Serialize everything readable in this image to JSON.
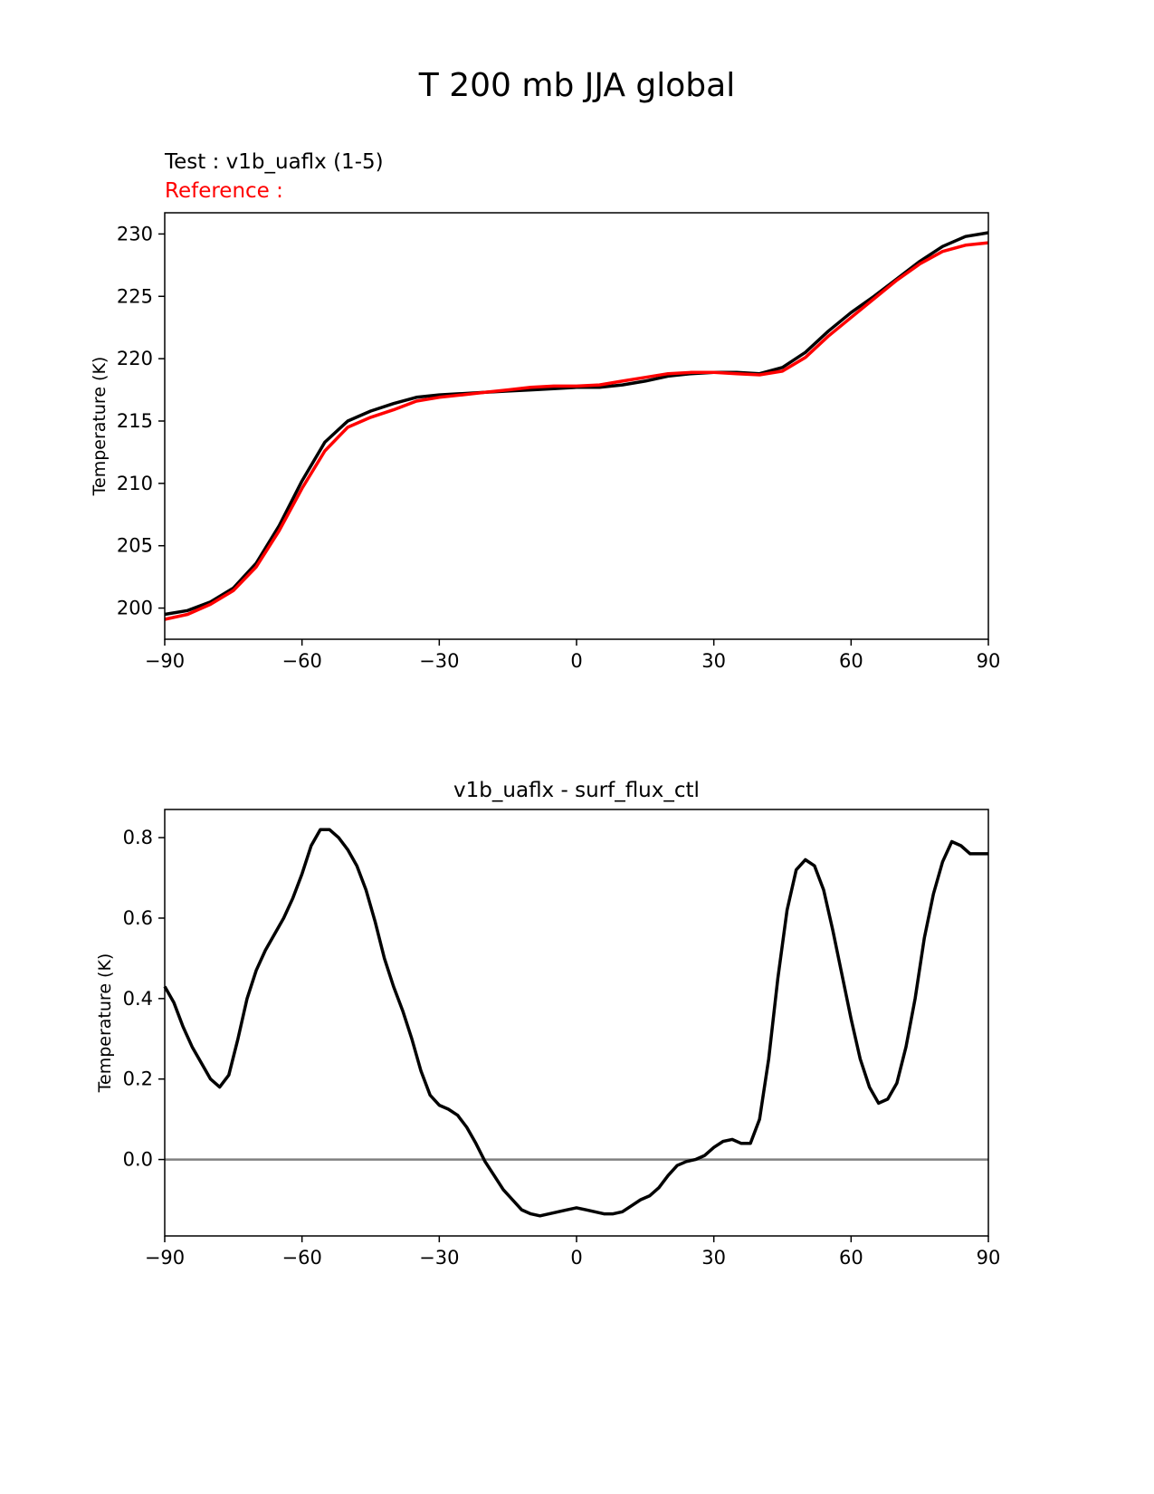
{
  "figure": {
    "title": "T 200 mb JJA global"
  },
  "chart_data": [
    {
      "type": "line",
      "test_label": "Test : v1b_uaflx (1-5)",
      "reference_label": "Reference :",
      "xlabel": "",
      "ylabel": "Temperature (K)",
      "xlim": [
        -90,
        90
      ],
      "ylim": [
        197.5,
        231.7
      ],
      "xticks": [
        -90,
        -60,
        -30,
        0,
        30,
        60,
        90
      ],
      "xtick_labels": [
        "−90",
        "−60",
        "−30",
        "0",
        "30",
        "60",
        "90"
      ],
      "yticks": [
        200,
        205,
        210,
        215,
        220,
        225,
        230
      ],
      "yticks_labels": [
        "200",
        "205",
        "210",
        "215",
        "220",
        "225",
        "230"
      ],
      "colors": {
        "test": "#000000",
        "reference": "#ff0000"
      },
      "series": [
        {
          "color": "#000000",
          "x": [
            -90,
            -85,
            -80,
            -75,
            -70,
            -65,
            -60,
            -55,
            -50,
            -45,
            -40,
            -35,
            -30,
            -25,
            -20,
            -15,
            -10,
            -5,
            0,
            5,
            10,
            15,
            20,
            25,
            30,
            35,
            40,
            45,
            50,
            55,
            60,
            65,
            70,
            75,
            80,
            85,
            90
          ],
          "y": [
            199.5,
            199.8,
            200.5,
            201.6,
            203.6,
            206.6,
            210.2,
            213.3,
            215.0,
            215.8,
            216.4,
            216.9,
            217.1,
            217.2,
            217.3,
            217.4,
            217.5,
            217.6,
            217.7,
            217.7,
            217.9,
            218.2,
            218.6,
            218.8,
            218.9,
            218.9,
            218.8,
            219.3,
            220.5,
            222.2,
            223.7,
            225.0,
            226.4,
            227.8,
            229.0,
            229.8,
            230.1
          ]
        },
        {
          "color": "#ff0000",
          "x": [
            -90,
            -85,
            -80,
            -75,
            -70,
            -65,
            -60,
            -55,
            -50,
            -45,
            -40,
            -35,
            -30,
            -25,
            -20,
            -15,
            -10,
            -5,
            0,
            5,
            10,
            15,
            20,
            25,
            30,
            35,
            40,
            45,
            50,
            55,
            60,
            65,
            70,
            75,
            80,
            85,
            90
          ],
          "y": [
            199.1,
            199.5,
            200.3,
            201.4,
            203.3,
            206.2,
            209.6,
            212.6,
            214.5,
            215.3,
            215.9,
            216.6,
            216.9,
            217.1,
            217.3,
            217.5,
            217.7,
            217.8,
            217.8,
            217.9,
            218.2,
            218.5,
            218.8,
            218.9,
            218.9,
            218.8,
            218.7,
            219.0,
            220.1,
            221.8,
            223.3,
            224.8,
            226.3,
            227.6,
            228.6,
            229.1,
            229.3
          ]
        }
      ]
    },
    {
      "type": "line",
      "title": "v1b_uaflx - surf_flux_ctl",
      "xlabel": "",
      "ylabel": "Temperature (K)",
      "xlim": [
        -90,
        90
      ],
      "ylim": [
        -0.19,
        0.87
      ],
      "xticks": [
        -90,
        -60,
        -30,
        0,
        30,
        60,
        90
      ],
      "xtick_labels": [
        "−90",
        "−60",
        "−30",
        "0",
        "30",
        "60",
        "90"
      ],
      "yticks": [
        0.0,
        0.2,
        0.4,
        0.6,
        0.8
      ],
      "yticks_labels": [
        "0.0",
        "0.2",
        "0.4",
        "0.6",
        "0.8"
      ],
      "zero_line": {
        "y": 0,
        "color": "#808080"
      },
      "series": [
        {
          "color": "#000000",
          "x": [
            -90,
            -88,
            -86,
            -84,
            -82,
            -80,
            -78,
            -76,
            -74,
            -72,
            -70,
            -68,
            -66,
            -64,
            -62,
            -60,
            -58,
            -56,
            -54,
            -52,
            -50,
            -48,
            -46,
            -44,
            -42,
            -40,
            -38,
            -36,
            -34,
            -32,
            -30,
            -28,
            -26,
            -24,
            -22,
            -20,
            -18,
            -16,
            -14,
            -12,
            -10,
            -8,
            -6,
            -4,
            -2,
            0,
            2,
            4,
            6,
            8,
            10,
            12,
            14,
            16,
            18,
            20,
            22,
            24,
            26,
            28,
            30,
            32,
            34,
            36,
            38,
            40,
            42,
            44,
            46,
            48,
            50,
            52,
            54,
            56,
            58,
            60,
            62,
            64,
            66,
            68,
            70,
            72,
            74,
            76,
            78,
            80,
            82,
            84,
            86,
            88,
            90
          ],
          "y": [
            0.43,
            0.39,
            0.33,
            0.28,
            0.24,
            0.2,
            0.18,
            0.21,
            0.3,
            0.4,
            0.47,
            0.52,
            0.56,
            0.6,
            0.65,
            0.71,
            0.78,
            0.82,
            0.82,
            0.8,
            0.77,
            0.73,
            0.67,
            0.59,
            0.5,
            0.43,
            0.37,
            0.3,
            0.22,
            0.16,
            0.135,
            0.125,
            0.11,
            0.08,
            0.04,
            -0.005,
            -0.04,
            -0.075,
            -0.1,
            -0.125,
            -0.135,
            -0.14,
            -0.135,
            -0.13,
            -0.125,
            -0.12,
            -0.125,
            -0.13,
            -0.135,
            -0.135,
            -0.13,
            -0.115,
            -0.1,
            -0.09,
            -0.07,
            -0.04,
            -0.015,
            -0.005,
            0.0,
            0.01,
            0.03,
            0.045,
            0.05,
            0.04,
            0.04,
            0.1,
            0.25,
            0.45,
            0.62,
            0.72,
            0.745,
            0.73,
            0.67,
            0.57,
            0.46,
            0.35,
            0.25,
            0.18,
            0.14,
            0.15,
            0.19,
            0.28,
            0.4,
            0.55,
            0.66,
            0.74,
            0.79,
            0.78,
            0.76,
            0.76,
            0.76
          ]
        }
      ]
    }
  ]
}
